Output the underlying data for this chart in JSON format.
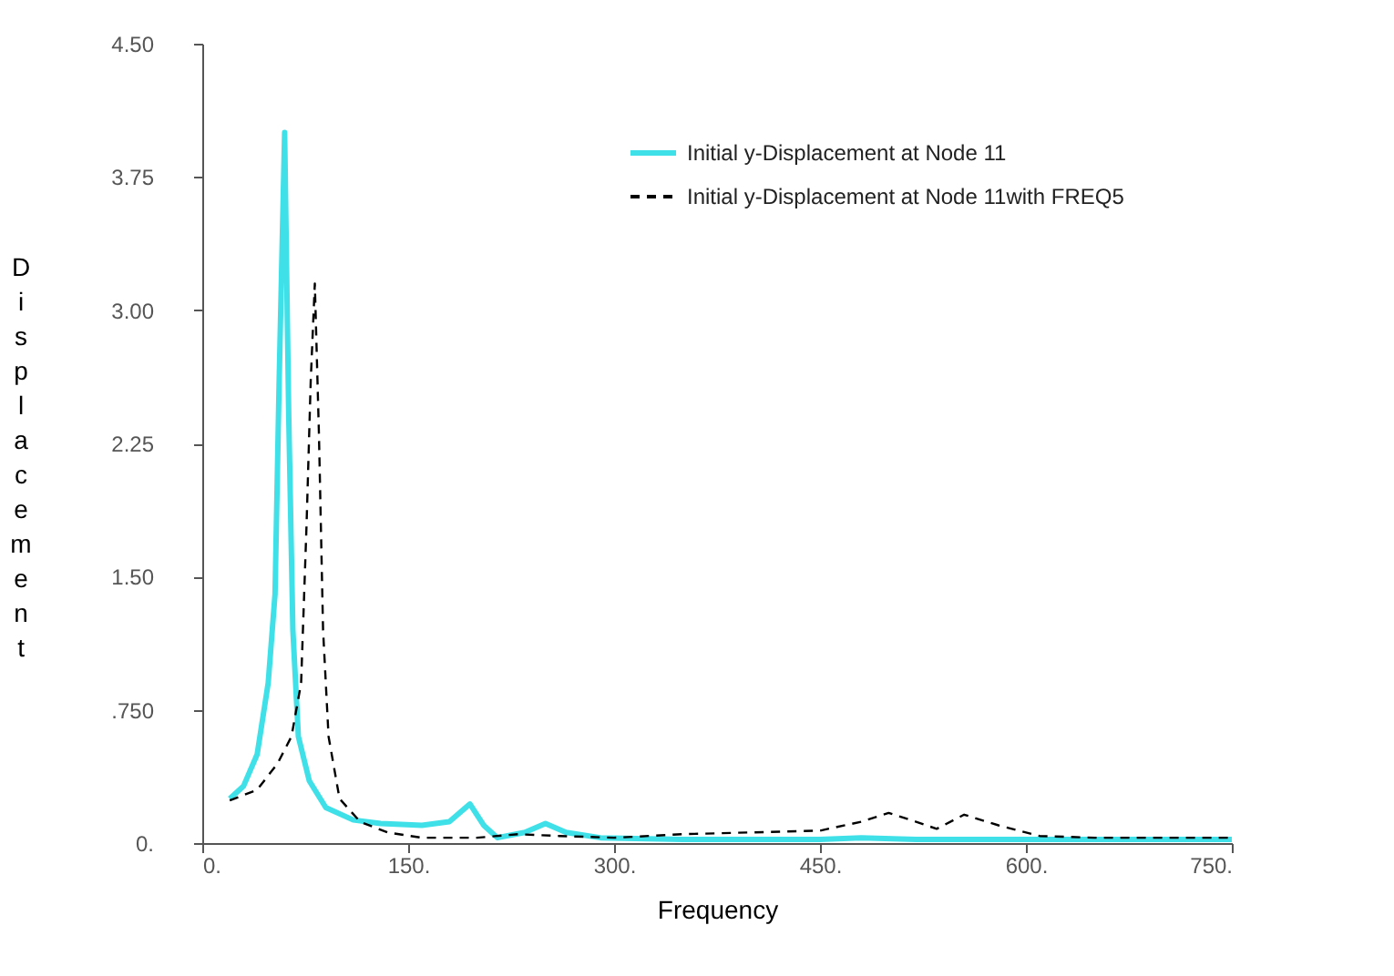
{
  "chart_data": {
    "type": "line",
    "xlabel": "Frequency",
    "ylabel": "Displacement",
    "xlim": [
      0,
      750
    ],
    "ylim": [
      0,
      4.5
    ],
    "xticks": [
      {
        "value": 0,
        "label": "0."
      },
      {
        "value": 150,
        "label": "150."
      },
      {
        "value": 300,
        "label": "300."
      },
      {
        "value": 450,
        "label": "450."
      },
      {
        "value": 600,
        "label": "600."
      },
      {
        "value": 750,
        "label": "750."
      }
    ],
    "yticks": [
      {
        "value": 0,
        "label": "0."
      },
      {
        "value": 0.75,
        "label": ".750"
      },
      {
        "value": 1.5,
        "label": "1.50"
      },
      {
        "value": 2.25,
        "label": "2.25"
      },
      {
        "value": 3.0,
        "label": "3.00"
      },
      {
        "value": 3.75,
        "label": "3.75"
      },
      {
        "value": 4.5,
        "label": "4.50"
      }
    ],
    "grid": false,
    "legend": "top right",
    "marker": "none",
    "series": [
      {
        "name": "Initial y-Displacement at Node 11",
        "color": "#40e0e8",
        "line_style": "solid",
        "x": [
          20,
          30,
          40,
          48,
          53,
          56,
          60,
          63,
          66,
          70,
          78,
          90,
          110,
          130,
          160,
          180,
          195,
          205,
          215,
          235,
          250,
          265,
          290,
          350,
          450,
          480,
          520,
          600,
          750
        ],
        "values": [
          0.25,
          0.32,
          0.5,
          0.9,
          1.4,
          2.6,
          4.0,
          2.4,
          1.2,
          0.6,
          0.35,
          0.2,
          0.13,
          0.11,
          0.1,
          0.12,
          0.22,
          0.1,
          0.03,
          0.06,
          0.11,
          0.06,
          0.03,
          0.02,
          0.02,
          0.03,
          0.02,
          0.02,
          0.02
        ]
      },
      {
        "name": "Initial y-Displacement at Node 11with FREQ5",
        "color": "#000000",
        "line_style": "dashed",
        "x": [
          20,
          40,
          55,
          65,
          72,
          76,
          79,
          82,
          85,
          88,
          92,
          100,
          115,
          135,
          160,
          200,
          230,
          260,
          300,
          350,
          400,
          450,
          480,
          500,
          520,
          535,
          555,
          580,
          610,
          650,
          750
        ],
        "values": [
          0.24,
          0.3,
          0.45,
          0.6,
          0.9,
          1.8,
          2.6,
          3.15,
          2.3,
          1.2,
          0.6,
          0.25,
          0.12,
          0.06,
          0.03,
          0.03,
          0.05,
          0.04,
          0.03,
          0.05,
          0.06,
          0.07,
          0.12,
          0.17,
          0.12,
          0.08,
          0.16,
          0.1,
          0.04,
          0.03,
          0.03
        ]
      }
    ]
  }
}
